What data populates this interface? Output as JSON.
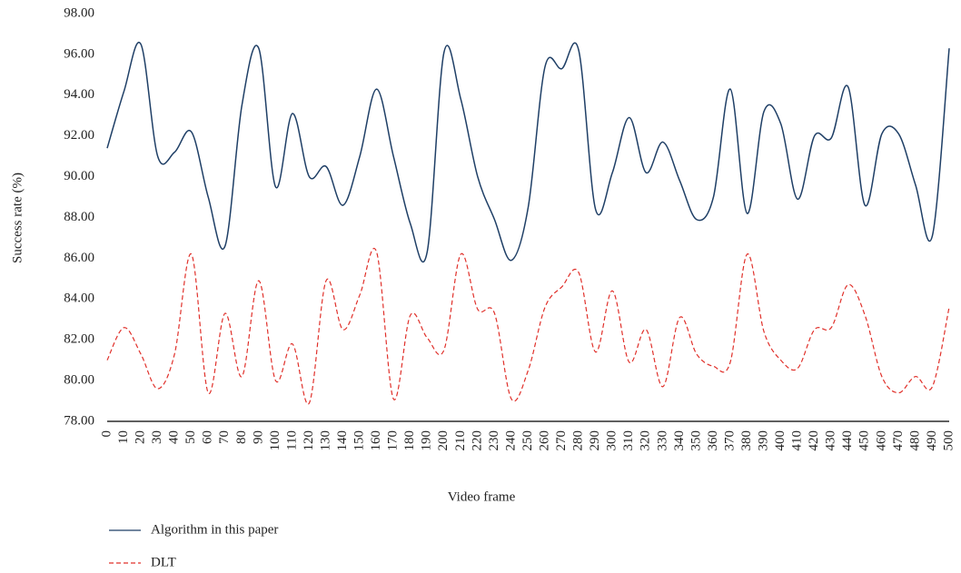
{
  "chart_data": {
    "type": "line",
    "xlabel": "Video frame",
    "ylabel": "Success rate (%)",
    "x": [
      0,
      10,
      20,
      30,
      40,
      50,
      60,
      70,
      80,
      90,
      100,
      110,
      120,
      130,
      140,
      150,
      160,
      170,
      180,
      190,
      200,
      210,
      220,
      230,
      240,
      250,
      260,
      270,
      280,
      290,
      300,
      310,
      320,
      330,
      340,
      350,
      360,
      370,
      380,
      390,
      400,
      410,
      420,
      430,
      440,
      450,
      460,
      470,
      480,
      490,
      500
    ],
    "xlim": [
      0,
      500
    ],
    "ylim": [
      78,
      98
    ],
    "yticks": [
      {
        "value": 78,
        "label": "78.00"
      },
      {
        "value": 80,
        "label": "80.00"
      },
      {
        "value": 82,
        "label": "82.00"
      },
      {
        "value": 84,
        "label": "84.00"
      },
      {
        "value": 86,
        "label": "86.00"
      },
      {
        "value": 88,
        "label": "88.00"
      },
      {
        "value": 90,
        "label": "90.00"
      },
      {
        "value": 92,
        "label": "92.00"
      },
      {
        "value": 94,
        "label": "94.00"
      },
      {
        "value": 96,
        "label": "96.00"
      },
      {
        "value": 98,
        "label": "98.00"
      }
    ],
    "grid": false,
    "series": [
      {
        "name": "Algorithm in this paper",
        "color": "#1f3f66",
        "dash": "solid",
        "values": [
          91.4,
          94.2,
          96.5,
          91.0,
          91.2,
          92.2,
          89.0,
          86.6,
          93.5,
          96.3,
          89.5,
          93.1,
          90.0,
          90.5,
          88.6,
          91.0,
          94.3,
          91.0,
          87.7,
          86.3,
          96.1,
          93.8,
          90.0,
          87.9,
          85.9,
          88.5,
          95.4,
          95.3,
          96.2,
          88.4,
          90.2,
          92.9,
          90.2,
          91.7,
          89.8,
          87.9,
          89.0,
          94.3,
          88.2,
          93.2,
          92.6,
          88.9,
          92.0,
          91.9,
          94.4,
          88.6,
          92.1,
          92.1,
          89.6,
          87.1,
          96.3
        ]
      },
      {
        "name": "DLT",
        "color": "#e0302a",
        "dash": "dashed",
        "values": [
          81.0,
          82.6,
          81.3,
          79.6,
          81.3,
          86.2,
          79.4,
          83.3,
          80.2,
          84.9,
          80.0,
          81.8,
          78.9,
          84.9,
          82.5,
          84.2,
          86.3,
          79.1,
          83.2,
          82.1,
          81.5,
          86.2,
          83.5,
          83.3,
          79.1,
          80.5,
          83.6,
          84.6,
          85.3,
          81.4,
          84.4,
          80.9,
          82.5,
          79.7,
          83.1,
          81.3,
          80.7,
          80.9,
          86.2,
          82.4,
          81.0,
          80.6,
          82.5,
          82.6,
          84.7,
          83.2,
          80.2,
          79.4,
          80.2,
          79.7,
          83.6
        ]
      }
    ]
  }
}
